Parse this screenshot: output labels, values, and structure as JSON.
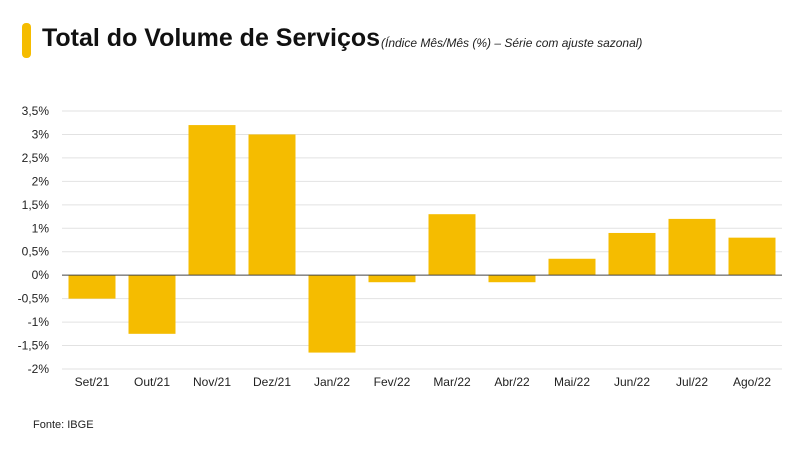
{
  "header": {
    "title": "Total do Volume de Serviços",
    "subtitle": "(Índice Mês/Mês (%) – Série com ajuste sazonal)"
  },
  "footer": {
    "source": "Fonte: IBGE"
  },
  "colors": {
    "accent": "#f5bc00",
    "bar": "#f5bc00",
    "grid": "#e2e2e2",
    "zero_line": "#444444"
  },
  "chart_data": {
    "type": "bar",
    "title": "Total do Volume de Serviços",
    "subtitle": "(Índice Mês/Mês (%) – Série com ajuste sazonal)",
    "xlabel": "",
    "ylabel": "",
    "categories": [
      "Set/21",
      "Out/21",
      "Nov/21",
      "Dez/21",
      "Jan/22",
      "Fev/22",
      "Mar/22",
      "Abr/22",
      "Mai/22",
      "Jun/22",
      "Jul/22",
      "Ago/22"
    ],
    "values": [
      -0.5,
      -1.25,
      3.2,
      3.0,
      -1.65,
      -0.15,
      1.3,
      -0.15,
      0.35,
      0.9,
      1.2,
      0.8
    ],
    "ylim": [
      -2,
      3.5
    ],
    "yticks": [
      3.5,
      3,
      2.5,
      2,
      1.5,
      1,
      0.5,
      0,
      -0.5,
      -1,
      -1.5,
      -2
    ],
    "ytick_labels": [
      "3,5%",
      "3%",
      "2,5%",
      "2%",
      "1,5%",
      "1%",
      "0,5%",
      "0%",
      "-0,5%",
      "-1%",
      "-1,5%",
      "-2%"
    ],
    "grid": true,
    "legend": "none"
  }
}
